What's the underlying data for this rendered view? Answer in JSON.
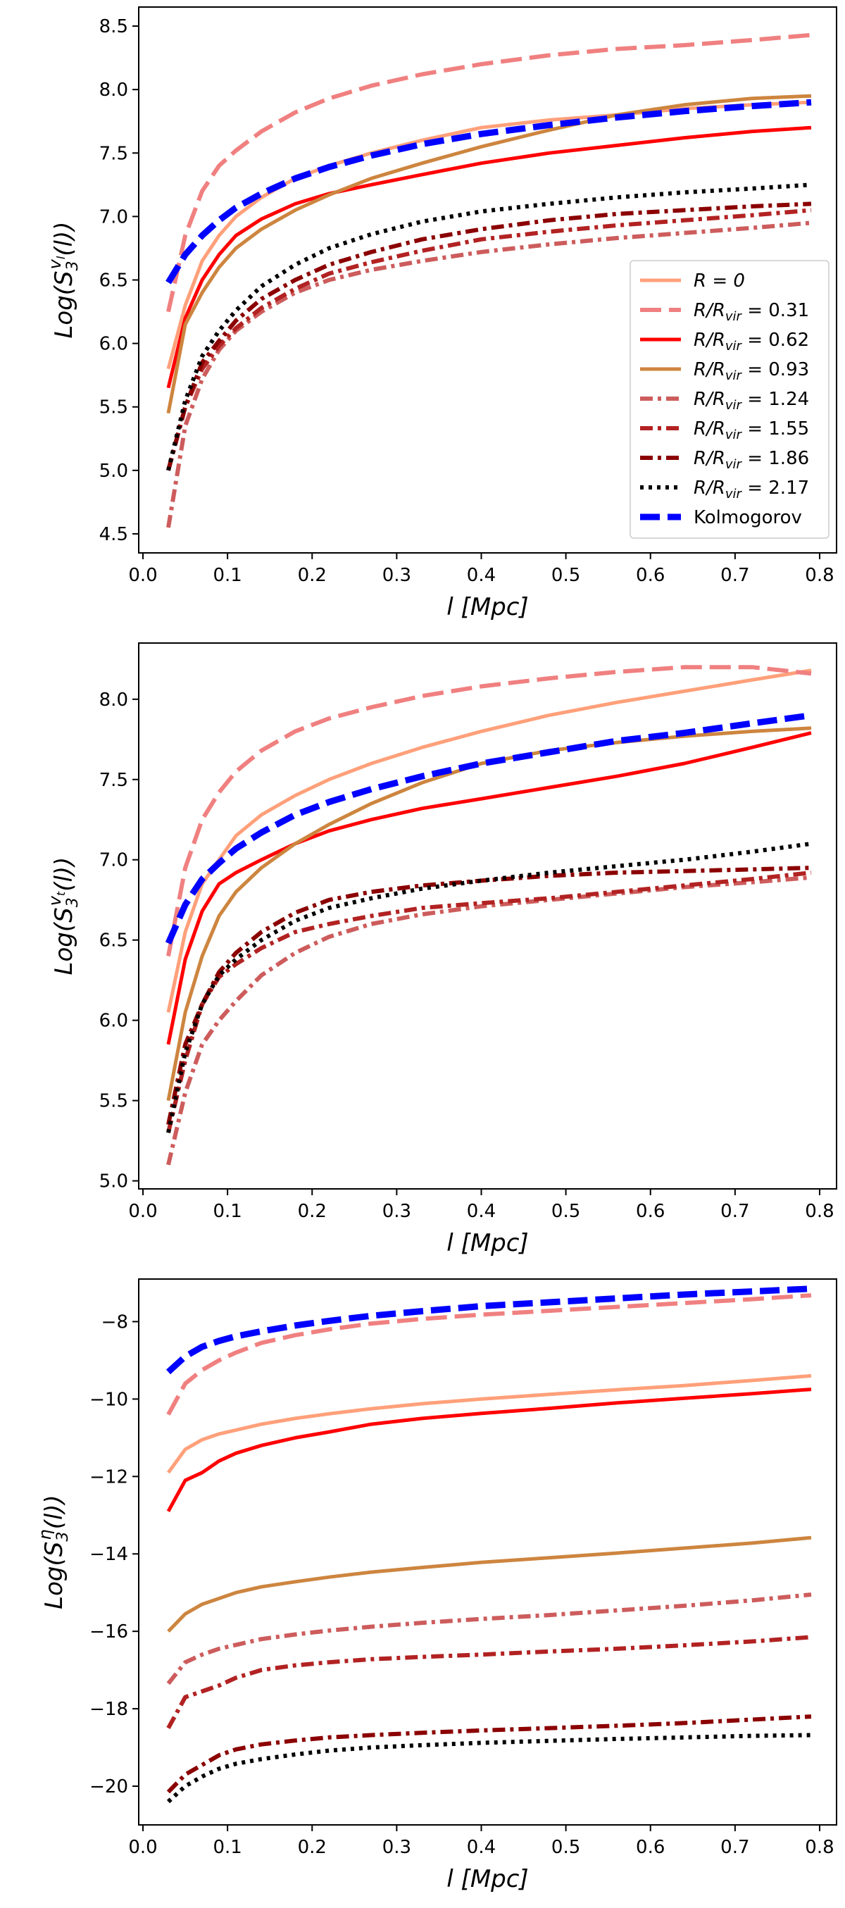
{
  "figure_colors": {
    "R0": "#ffa07a",
    "R031": "#f08080",
    "R062": "#ff0000",
    "R093": "#cd853f",
    "R124": "#cd5c5c",
    "R155": "#b22222",
    "R186": "#8b0000",
    "R217": "#000000",
    "kolmogorov": "#0000ff"
  },
  "chart_data": [
    {
      "type": "line",
      "id": "panel1",
      "xlabel": "l [Mpc]",
      "ylabel": "Log(S_3^{v_l}(l))",
      "ylabel_parts": {
        "pre": "Log(S",
        "sub": "3",
        "sup": "v",
        "supsub": "l",
        "post": "(l))"
      },
      "xlim": [
        -0.005,
        0.82
      ],
      "ylim": [
        4.35,
        8.65
      ],
      "xticks": [
        0.0,
        0.1,
        0.2,
        0.3,
        0.4,
        0.5,
        0.6,
        0.7,
        0.8
      ],
      "xtick_labels": [
        "0.0",
        "0.1",
        "0.2",
        "0.3",
        "0.4",
        "0.5",
        "0.6",
        "0.7",
        "0.8"
      ],
      "yticks": [
        4.5,
        5.0,
        5.5,
        6.0,
        6.5,
        7.0,
        7.5,
        8.0,
        8.5
      ],
      "ytick_labels": [
        "4.5",
        "5.0",
        "5.5",
        "6.0",
        "6.5",
        "7.0",
        "7.5",
        "8.0",
        "8.5"
      ],
      "legend": {
        "position": "lower-right",
        "entries": [
          {
            "key": "R0",
            "label": {
              "pre": "R = 0"
            }
          },
          {
            "key": "R031",
            "label": {
              "pre": "R/R",
              "sub": "vir",
              "post": " = 0.31"
            }
          },
          {
            "key": "R062",
            "label": {
              "pre": "R/R",
              "sub": "vir",
              "post": " = 0.62"
            }
          },
          {
            "key": "R093",
            "label": {
              "pre": "R/R",
              "sub": "vir",
              "post": " = 0.93"
            }
          },
          {
            "key": "R124",
            "label": {
              "pre": "R/R",
              "sub": "vir",
              "post": " = 1.24"
            }
          },
          {
            "key": "R155",
            "label": {
              "pre": "R/R",
              "sub": "vir",
              "post": " = 1.55"
            }
          },
          {
            "key": "R186",
            "label": {
              "pre": "R/R",
              "sub": "vir",
              "post": " = 1.86"
            }
          },
          {
            "key": "R217",
            "label": {
              "pre": "R/R",
              "sub": "vir",
              "post": " = 2.17"
            }
          },
          {
            "key": "kolmogorov",
            "label": {
              "pre": "Kolmogorov"
            }
          }
        ]
      },
      "x": [
        0.03,
        0.05,
        0.07,
        0.09,
        0.11,
        0.14,
        0.18,
        0.22,
        0.27,
        0.33,
        0.4,
        0.48,
        0.56,
        0.64,
        0.72,
        0.79
      ],
      "series": [
        {
          "key": "R0",
          "name": "R = 0",
          "values": [
            5.8,
            6.3,
            6.65,
            6.85,
            7.0,
            7.15,
            7.3,
            7.4,
            7.5,
            7.6,
            7.7,
            7.76,
            7.8,
            7.85,
            7.88,
            7.9
          ]
        },
        {
          "key": "R031",
          "name": "R/Rvir = 0.31",
          "values": [
            6.25,
            6.85,
            7.2,
            7.4,
            7.52,
            7.67,
            7.82,
            7.93,
            8.03,
            8.12,
            8.2,
            8.27,
            8.32,
            8.35,
            8.39,
            8.43
          ]
        },
        {
          "key": "R062",
          "name": "R/Rvir = 0.62",
          "values": [
            5.65,
            6.2,
            6.5,
            6.7,
            6.85,
            6.98,
            7.1,
            7.18,
            7.25,
            7.33,
            7.42,
            7.5,
            7.56,
            7.62,
            7.67,
            7.7
          ]
        },
        {
          "key": "R093",
          "name": "R/Rvir = 0.93",
          "values": [
            5.45,
            6.15,
            6.4,
            6.6,
            6.75,
            6.9,
            7.05,
            7.17,
            7.3,
            7.42,
            7.55,
            7.68,
            7.8,
            7.88,
            7.93,
            7.95
          ]
        },
        {
          "key": "R124",
          "name": "R/Rvir = 1.24",
          "values": [
            4.55,
            5.35,
            5.72,
            5.95,
            6.1,
            6.25,
            6.4,
            6.5,
            6.58,
            6.65,
            6.72,
            6.78,
            6.83,
            6.87,
            6.91,
            6.95
          ]
        },
        {
          "key": "R155",
          "name": "R/Rvir = 1.55",
          "values": [
            5.0,
            5.5,
            5.8,
            5.98,
            6.12,
            6.28,
            6.43,
            6.55,
            6.64,
            6.73,
            6.82,
            6.88,
            6.93,
            6.97,
            7.01,
            7.05
          ]
        },
        {
          "key": "R186",
          "name": "R/Rvir = 1.86",
          "values": [
            5.0,
            5.5,
            5.85,
            6.02,
            6.18,
            6.35,
            6.5,
            6.62,
            6.72,
            6.82,
            6.9,
            6.97,
            7.02,
            7.05,
            7.08,
            7.1
          ]
        },
        {
          "key": "R217",
          "name": "R/Rvir = 2.17",
          "values": [
            5.0,
            5.55,
            5.9,
            6.1,
            6.26,
            6.45,
            6.62,
            6.75,
            6.86,
            6.96,
            7.04,
            7.1,
            7.15,
            7.19,
            7.22,
            7.25
          ]
        },
        {
          "key": "kolmogorov",
          "name": "Kolmogorov",
          "values": [
            6.48,
            6.7,
            6.85,
            6.97,
            7.07,
            7.18,
            7.3,
            7.39,
            7.48,
            7.57,
            7.65,
            7.72,
            7.78,
            7.83,
            7.87,
            7.9
          ]
        }
      ]
    },
    {
      "type": "line",
      "id": "panel2",
      "xlabel": "l [Mpc]",
      "ylabel": "Log(S_3^{v_t}(l))",
      "ylabel_parts": {
        "pre": "Log(S",
        "sub": "3",
        "sup": "v",
        "supsub": "t",
        "post": "(l))"
      },
      "xlim": [
        -0.005,
        0.82
      ],
      "ylim": [
        4.95,
        8.35
      ],
      "xticks": [
        0.0,
        0.1,
        0.2,
        0.3,
        0.4,
        0.5,
        0.6,
        0.7,
        0.8
      ],
      "xtick_labels": [
        "0.0",
        "0.1",
        "0.2",
        "0.3",
        "0.4",
        "0.5",
        "0.6",
        "0.7",
        "0.8"
      ],
      "yticks": [
        5.0,
        5.5,
        6.0,
        6.5,
        7.0,
        7.5,
        8.0
      ],
      "ytick_labels": [
        "5.0",
        "5.5",
        "6.0",
        "6.5",
        "7.0",
        "7.5",
        "8.0"
      ],
      "x": [
        0.03,
        0.05,
        0.07,
        0.09,
        0.11,
        0.14,
        0.18,
        0.22,
        0.27,
        0.33,
        0.4,
        0.48,
        0.56,
        0.64,
        0.72,
        0.79
      ],
      "series": [
        {
          "key": "R0",
          "name": "R = 0",
          "values": [
            6.05,
            6.55,
            6.85,
            7.0,
            7.15,
            7.28,
            7.4,
            7.5,
            7.6,
            7.7,
            7.8,
            7.9,
            7.98,
            8.05,
            8.12,
            8.18
          ]
        },
        {
          "key": "R031",
          "name": "R/Rvir = 0.31",
          "values": [
            6.4,
            6.95,
            7.25,
            7.42,
            7.55,
            7.68,
            7.8,
            7.88,
            7.95,
            8.02,
            8.08,
            8.13,
            8.17,
            8.2,
            8.2,
            8.16
          ]
        },
        {
          "key": "R062",
          "name": "R/Rvir = 0.62",
          "values": [
            5.85,
            6.38,
            6.68,
            6.85,
            6.92,
            7.0,
            7.1,
            7.18,
            7.25,
            7.32,
            7.38,
            7.45,
            7.52,
            7.6,
            7.7,
            7.79
          ]
        },
        {
          "key": "R093",
          "name": "R/Rvir = 0.93",
          "values": [
            5.5,
            6.05,
            6.4,
            6.65,
            6.8,
            6.95,
            7.1,
            7.22,
            7.35,
            7.48,
            7.6,
            7.68,
            7.73,
            7.77,
            7.8,
            7.82
          ]
        },
        {
          "key": "R124",
          "name": "R/Rvir = 1.24",
          "values": [
            5.1,
            5.55,
            5.85,
            6.0,
            6.12,
            6.28,
            6.42,
            6.52,
            6.6,
            6.66,
            6.71,
            6.75,
            6.79,
            6.83,
            6.86,
            6.89
          ]
        },
        {
          "key": "R155",
          "name": "R/Rvir = 1.55",
          "values": [
            5.3,
            5.75,
            6.1,
            6.27,
            6.35,
            6.45,
            6.55,
            6.6,
            6.65,
            6.7,
            6.73,
            6.76,
            6.8,
            6.84,
            6.88,
            6.92
          ]
        },
        {
          "key": "R186",
          "name": "R/Rvir = 1.86",
          "values": [
            5.35,
            5.85,
            6.1,
            6.3,
            6.42,
            6.55,
            6.67,
            6.75,
            6.8,
            6.84,
            6.87,
            6.9,
            6.92,
            6.93,
            6.94,
            6.95
          ]
        },
        {
          "key": "R217",
          "name": "R/Rvir = 2.17",
          "values": [
            5.3,
            5.8,
            6.1,
            6.28,
            6.38,
            6.5,
            6.62,
            6.7,
            6.76,
            6.82,
            6.87,
            6.92,
            6.96,
            7.0,
            7.05,
            7.1
          ]
        },
        {
          "key": "kolmogorov",
          "name": "Kolmogorov",
          "values": [
            6.48,
            6.72,
            6.88,
            6.98,
            7.07,
            7.17,
            7.28,
            7.36,
            7.44,
            7.52,
            7.6,
            7.67,
            7.74,
            7.79,
            7.85,
            7.9
          ]
        }
      ]
    },
    {
      "type": "line",
      "id": "panel3",
      "xlabel": "l [Mpc]",
      "ylabel": "Log(S_3^{η}(l))",
      "ylabel_parts": {
        "pre": "Log(S",
        "sub": "3",
        "sup": "η",
        "supsub": "",
        "post": "(l))"
      },
      "xlim": [
        -0.005,
        0.82
      ],
      "ylim": [
        -21.0,
        -6.9
      ],
      "xticks": [
        0.0,
        0.1,
        0.2,
        0.3,
        0.4,
        0.5,
        0.6,
        0.7,
        0.8
      ],
      "xtick_labels": [
        "0.0",
        "0.1",
        "0.2",
        "0.3",
        "0.4",
        "0.5",
        "0.6",
        "0.7",
        "0.8"
      ],
      "yticks": [
        -20,
        -18,
        -16,
        -14,
        -12,
        -10,
        -8
      ],
      "ytick_labels": [
        "−20",
        "−18",
        "−16",
        "−14",
        "−12",
        "−10",
        "−8"
      ],
      "x": [
        0.03,
        0.05,
        0.07,
        0.09,
        0.11,
        0.14,
        0.18,
        0.22,
        0.27,
        0.33,
        0.4,
        0.48,
        0.56,
        0.64,
        0.72,
        0.79
      ],
      "series": [
        {
          "key": "R0",
          "name": "R = 0",
          "values": [
            -11.9,
            -11.3,
            -11.05,
            -10.9,
            -10.8,
            -10.65,
            -10.5,
            -10.38,
            -10.25,
            -10.12,
            -10.0,
            -9.88,
            -9.76,
            -9.65,
            -9.52,
            -9.4
          ]
        },
        {
          "key": "R031",
          "name": "R/Rvir = 0.31",
          "values": [
            -10.4,
            -9.6,
            -9.25,
            -9.0,
            -8.8,
            -8.55,
            -8.35,
            -8.2,
            -8.05,
            -7.93,
            -7.82,
            -7.72,
            -7.62,
            -7.52,
            -7.42,
            -7.32
          ]
        },
        {
          "key": "R062",
          "name": "R/Rvir = 0.62",
          "values": [
            -12.9,
            -12.1,
            -11.9,
            -11.6,
            -11.4,
            -11.2,
            -11.0,
            -10.85,
            -10.65,
            -10.5,
            -10.37,
            -10.24,
            -10.1,
            -9.98,
            -9.86,
            -9.75
          ]
        },
        {
          "key": "R093",
          "name": "R/Rvir = 0.93",
          "values": [
            -16.0,
            -15.55,
            -15.3,
            -15.15,
            -15.0,
            -14.85,
            -14.72,
            -14.6,
            -14.47,
            -14.35,
            -14.22,
            -14.1,
            -13.98,
            -13.85,
            -13.72,
            -13.58
          ]
        },
        {
          "key": "R124",
          "name": "R/Rvir = 1.24",
          "values": [
            -17.35,
            -16.8,
            -16.6,
            -16.45,
            -16.35,
            -16.2,
            -16.08,
            -15.98,
            -15.88,
            -15.78,
            -15.68,
            -15.58,
            -15.46,
            -15.34,
            -15.2,
            -15.05
          ]
        },
        {
          "key": "R155",
          "name": "R/Rvir = 1.55",
          "values": [
            -18.5,
            -17.7,
            -17.55,
            -17.4,
            -17.2,
            -17.0,
            -16.88,
            -16.8,
            -16.72,
            -16.66,
            -16.6,
            -16.52,
            -16.45,
            -16.36,
            -16.26,
            -16.15
          ]
        },
        {
          "key": "R186",
          "name": "R/Rvir = 1.86",
          "values": [
            -20.15,
            -19.7,
            -19.45,
            -19.2,
            -19.05,
            -18.92,
            -18.82,
            -18.74,
            -18.68,
            -18.62,
            -18.56,
            -18.5,
            -18.44,
            -18.37,
            -18.28,
            -18.2
          ]
        },
        {
          "key": "R217",
          "name": "R/Rvir = 2.17",
          "values": [
            -20.4,
            -20.0,
            -19.75,
            -19.55,
            -19.42,
            -19.3,
            -19.18,
            -19.08,
            -19.0,
            -18.94,
            -18.88,
            -18.83,
            -18.78,
            -18.74,
            -18.7,
            -18.68
          ]
        },
        {
          "key": "kolmogorov",
          "name": "Kolmogorov",
          "values": [
            -9.3,
            -8.9,
            -8.65,
            -8.5,
            -8.38,
            -8.25,
            -8.1,
            -7.98,
            -7.85,
            -7.73,
            -7.6,
            -7.5,
            -7.4,
            -7.3,
            -7.22,
            -7.15
          ]
        }
      ]
    }
  ]
}
